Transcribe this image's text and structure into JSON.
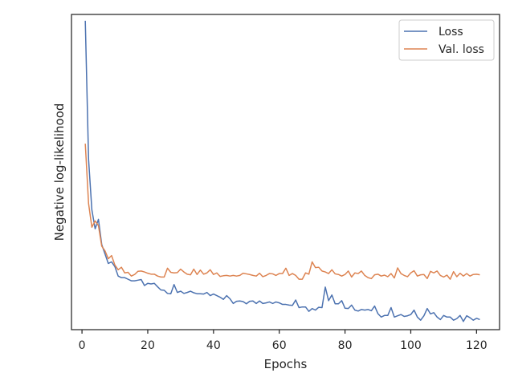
{
  "chart_data": {
    "type": "line",
    "xlabel": "Epochs",
    "ylabel": "Negative log-likelihood",
    "xlim": [
      -3.2,
      127
    ],
    "ylim": [
      0,
      1
    ],
    "y_tick_labels_shown": false,
    "x_ticks": [
      0,
      20,
      40,
      60,
      80,
      100,
      120
    ],
    "x_tick_labels": [
      "0",
      "20",
      "40",
      "60",
      "80",
      "100",
      "120"
    ],
    "legend_position": "upper-right",
    "series": [
      {
        "name": "Loss",
        "color": "#4c72b0",
        "x": [
          1,
          2,
          3,
          4,
          5,
          6,
          7,
          8,
          9,
          10,
          11,
          12,
          13,
          14,
          15,
          16,
          17,
          18,
          19,
          20,
          21,
          22,
          23,
          24,
          25,
          26,
          27,
          28,
          29,
          30,
          31,
          32,
          33,
          34,
          35,
          36,
          37,
          38,
          39,
          40,
          41,
          42,
          43,
          44,
          45,
          46,
          47,
          48,
          49,
          50,
          51,
          52,
          53,
          54,
          55,
          56,
          57,
          58,
          59,
          60,
          61,
          62,
          63,
          64,
          65,
          66,
          67,
          68,
          69,
          70,
          71,
          72,
          73,
          74,
          75,
          76,
          77,
          78,
          79,
          80,
          81,
          82,
          83,
          84,
          85,
          86,
          87,
          88,
          89,
          90,
          91,
          92,
          93,
          94,
          95,
          96,
          97,
          98,
          99,
          100,
          101,
          102,
          103,
          104,
          105,
          106,
          107,
          108,
          109,
          110,
          111,
          112,
          113,
          114,
          115,
          116,
          117,
          118,
          119,
          120,
          121
        ],
        "y": [
          0.98,
          0.54,
          0.38,
          0.32,
          0.35,
          0.27,
          0.24,
          0.21,
          0.215,
          0.2,
          0.17,
          0.165,
          0.165,
          0.16,
          0.155,
          0.155,
          0.157,
          0.159,
          0.14,
          0.147,
          0.145,
          0.147,
          0.136,
          0.126,
          0.125,
          0.115,
          0.114,
          0.143,
          0.118,
          0.122,
          0.115,
          0.118,
          0.122,
          0.117,
          0.114,
          0.114,
          0.113,
          0.118,
          0.108,
          0.113,
          0.108,
          0.103,
          0.096,
          0.108,
          0.098,
          0.083,
          0.09,
          0.091,
          0.089,
          0.082,
          0.09,
          0.091,
          0.083,
          0.091,
          0.083,
          0.085,
          0.088,
          0.083,
          0.088,
          0.085,
          0.08,
          0.08,
          0.078,
          0.077,
          0.094,
          0.07,
          0.072,
          0.072,
          0.058,
          0.067,
          0.062,
          0.071,
          0.07,
          0.135,
          0.092,
          0.11,
          0.082,
          0.082,
          0.092,
          0.068,
          0.067,
          0.078,
          0.062,
          0.059,
          0.064,
          0.062,
          0.064,
          0.06,
          0.075,
          0.051,
          0.04,
          0.045,
          0.045,
          0.07,
          0.04,
          0.044,
          0.048,
          0.042,
          0.044,
          0.048,
          0.062,
          0.04,
          0.03,
          0.044,
          0.067,
          0.05,
          0.054,
          0.04,
          0.032,
          0.045,
          0.04,
          0.04,
          0.03,
          0.035,
          0.045,
          0.026,
          0.044,
          0.038,
          0.03,
          0.036,
          0.032
        ]
      },
      {
        "name": "Val. loss",
        "color": "#dd8452",
        "x": [
          1,
          2,
          3,
          4,
          5,
          6,
          7,
          8,
          9,
          10,
          11,
          12,
          13,
          14,
          15,
          16,
          17,
          18,
          19,
          20,
          21,
          22,
          23,
          24,
          25,
          26,
          27,
          28,
          29,
          30,
          31,
          32,
          33,
          34,
          35,
          36,
          37,
          38,
          39,
          40,
          41,
          42,
          43,
          44,
          45,
          46,
          47,
          48,
          49,
          50,
          51,
          52,
          53,
          54,
          55,
          56,
          57,
          58,
          59,
          60,
          61,
          62,
          63,
          64,
          65,
          66,
          67,
          68,
          69,
          70,
          71,
          72,
          73,
          74,
          75,
          76,
          77,
          78,
          79,
          80,
          81,
          82,
          83,
          84,
          85,
          86,
          87,
          88,
          89,
          90,
          91,
          92,
          93,
          94,
          95,
          96,
          97,
          98,
          99,
          100,
          101,
          102,
          103,
          104,
          105,
          106,
          107,
          108,
          109,
          110,
          111,
          112,
          113,
          114,
          115,
          116,
          117,
          118,
          119,
          120,
          121
        ],
        "y": [
          0.59,
          0.4,
          0.325,
          0.345,
          0.33,
          0.265,
          0.25,
          0.225,
          0.235,
          0.205,
          0.19,
          0.198,
          0.18,
          0.182,
          0.17,
          0.175,
          0.185,
          0.186,
          0.183,
          0.179,
          0.176,
          0.176,
          0.17,
          0.167,
          0.167,
          0.195,
          0.182,
          0.18,
          0.181,
          0.192,
          0.183,
          0.176,
          0.174,
          0.192,
          0.175,
          0.189,
          0.176,
          0.18,
          0.19,
          0.175,
          0.18,
          0.169,
          0.171,
          0.172,
          0.17,
          0.172,
          0.17,
          0.172,
          0.179,
          0.177,
          0.175,
          0.172,
          0.17,
          0.179,
          0.168,
          0.172,
          0.178,
          0.177,
          0.172,
          0.178,
          0.178,
          0.195,
          0.172,
          0.178,
          0.172,
          0.16,
          0.16,
          0.18,
          0.176,
          0.215,
          0.197,
          0.198,
          0.186,
          0.183,
          0.178,
          0.19,
          0.177,
          0.175,
          0.17,
          0.175,
          0.186,
          0.167,
          0.18,
          0.178,
          0.186,
          0.172,
          0.165,
          0.162,
          0.174,
          0.176,
          0.17,
          0.173,
          0.168,
          0.178,
          0.164,
          0.196,
          0.178,
          0.172,
          0.168,
          0.18,
          0.187,
          0.17,
          0.174,
          0.175,
          0.162,
          0.185,
          0.18,
          0.186,
          0.172,
          0.167,
          0.173,
          0.16,
          0.184,
          0.168,
          0.179,
          0.17,
          0.178,
          0.17,
          0.175,
          0.176,
          0.174
        ]
      }
    ]
  }
}
